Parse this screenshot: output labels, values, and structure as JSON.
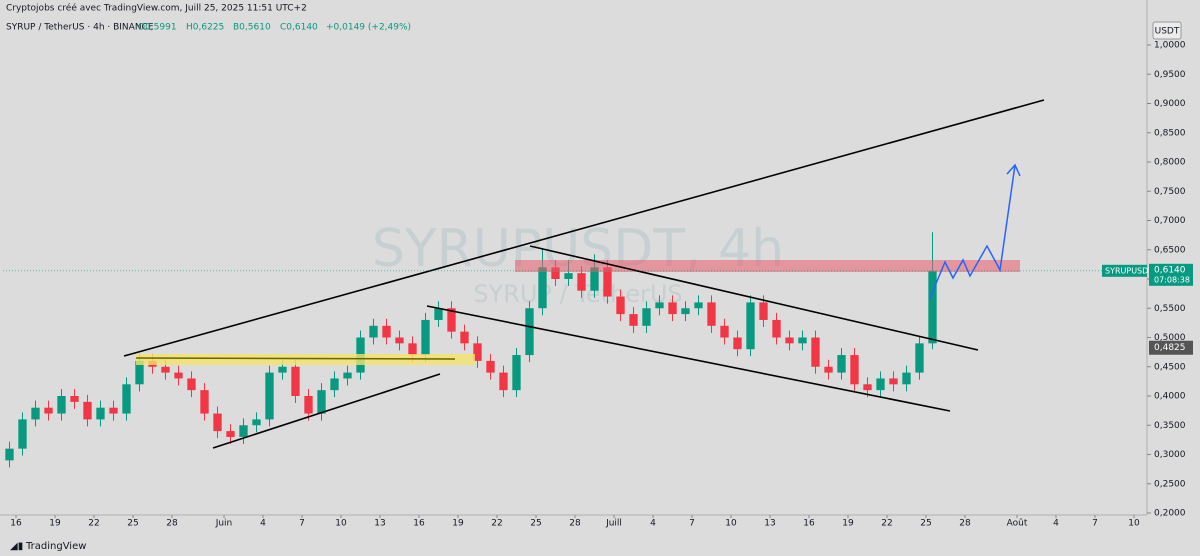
{
  "chart_data": {
    "type": "candlestick",
    "header": "Cryptojobs créé avec TradingView.com, Juill 25, 2025 11:51 UTC+2",
    "symbol_line": "SYRUP / TetherUS · 4h · BINANCE",
    "ohlc_text": [
      "O0,5991",
      "H0,6225",
      "B0,5610",
      "C0,6140"
    ],
    "change_text": "+0,0149 (+2,49%)",
    "watermark": "SYRUPUSDT, 4h",
    "watermark_sub": "SYRUP / TetherUS",
    "currency": "USDT",
    "symbol": "SYRUPUSDT",
    "countdown": "07:08:38",
    "footer": "TradingView",
    "last_price": {
      "value": 0.614,
      "label": "0,6140"
    },
    "marker_price": {
      "value": 0.4825,
      "label": "0,4825"
    },
    "up_color": "#089981",
    "down_color": "#f23645",
    "xlim": [
      "2025-05-15",
      "2025-08-11"
    ],
    "xticks": [
      {
        "value": "2025-05-16",
        "label": "16"
      },
      {
        "value": "2025-05-19",
        "label": "19"
      },
      {
        "value": "2025-05-22",
        "label": "22"
      },
      {
        "value": "2025-05-25",
        "label": "25"
      },
      {
        "value": "2025-05-28",
        "label": "28"
      },
      {
        "value": "2025-06-01",
        "label": "Juin"
      },
      {
        "value": "2025-06-04",
        "label": "4"
      },
      {
        "value": "2025-06-07",
        "label": "7"
      },
      {
        "value": "2025-06-10",
        "label": "10"
      },
      {
        "value": "2025-06-13",
        "label": "13"
      },
      {
        "value": "2025-06-16",
        "label": "16"
      },
      {
        "value": "2025-06-19",
        "label": "19"
      },
      {
        "value": "2025-06-22",
        "label": "22"
      },
      {
        "value": "2025-06-25",
        "label": "25"
      },
      {
        "value": "2025-06-28",
        "label": "28"
      },
      {
        "value": "2025-07-01",
        "label": "Juill"
      },
      {
        "value": "2025-07-04",
        "label": "4"
      },
      {
        "value": "2025-07-07",
        "label": "7"
      },
      {
        "value": "2025-07-10",
        "label": "10"
      },
      {
        "value": "2025-07-13",
        "label": "13"
      },
      {
        "value": "2025-07-16",
        "label": "16"
      },
      {
        "value": "2025-07-19",
        "label": "19"
      },
      {
        "value": "2025-07-22",
        "label": "22"
      },
      {
        "value": "2025-07-25",
        "label": "25"
      },
      {
        "value": "2025-07-28",
        "label": "28"
      },
      {
        "value": "2025-08-01",
        "label": "Août"
      },
      {
        "value": "2025-08-04",
        "label": "4"
      },
      {
        "value": "2025-08-07",
        "label": "7"
      },
      {
        "value": "2025-08-10",
        "label": "10"
      }
    ],
    "ylim": [
      0.2,
      1.0
    ],
    "yticks": [
      {
        "value": 0.2,
        "label": "0,2000"
      },
      {
        "value": 0.25,
        "label": "0,2500"
      },
      {
        "value": 0.3,
        "label": "0,3000"
      },
      {
        "value": 0.35,
        "label": "0,3500"
      },
      {
        "value": 0.4,
        "label": "0,4000"
      },
      {
        "value": 0.45,
        "label": "0,4500"
      },
      {
        "value": 0.5,
        "label": "0,5000"
      },
      {
        "value": 0.55,
        "label": "0,5500"
      },
      {
        "value": 0.6,
        "label": "0,6000"
      },
      {
        "value": 0.65,
        "label": "0,6500"
      },
      {
        "value": 0.7,
        "label": "0,7000"
      },
      {
        "value": 0.75,
        "label": "0,7500"
      },
      {
        "value": 0.8,
        "label": "0,8000"
      },
      {
        "value": 0.85,
        "label": "0,8500"
      },
      {
        "value": 0.9,
        "label": "0,9000"
      },
      {
        "value": 0.95,
        "label": "0,9500"
      },
      {
        "value": 1.0,
        "label": "1,0000"
      }
    ],
    "x": [
      "2025-05-15",
      "2025-05-16",
      "2025-05-17",
      "2025-05-18",
      "2025-05-19",
      "2025-05-20",
      "2025-05-21",
      "2025-05-22",
      "2025-05-23",
      "2025-05-24",
      "2025-05-25",
      "2025-05-26",
      "2025-05-27",
      "2025-05-28",
      "2025-05-29",
      "2025-05-30",
      "2025-05-31",
      "2025-06-01",
      "2025-06-02",
      "2025-06-03",
      "2025-06-04",
      "2025-06-05",
      "2025-06-06",
      "2025-06-07",
      "2025-06-08",
      "2025-06-09",
      "2025-06-10",
      "2025-06-11",
      "2025-06-12",
      "2025-06-13",
      "2025-06-14",
      "2025-06-15",
      "2025-06-16",
      "2025-06-17",
      "2025-06-18",
      "2025-06-19",
      "2025-06-20",
      "2025-06-21",
      "2025-06-22",
      "2025-06-23",
      "2025-06-24",
      "2025-06-25",
      "2025-06-26",
      "2025-06-27",
      "2025-06-28",
      "2025-06-29",
      "2025-06-30",
      "2025-07-01",
      "2025-07-02",
      "2025-07-03",
      "2025-07-04",
      "2025-07-05",
      "2025-07-06",
      "2025-07-07",
      "2025-07-08",
      "2025-07-09",
      "2025-07-10",
      "2025-07-11",
      "2025-07-12",
      "2025-07-13",
      "2025-07-14",
      "2025-07-15",
      "2025-07-16",
      "2025-07-17",
      "2025-07-18",
      "2025-07-19",
      "2025-07-20",
      "2025-07-21",
      "2025-07-22",
      "2025-07-23",
      "2025-07-24",
      "2025-07-25"
    ],
    "ohlc": [
      [
        0.29,
        0.322,
        0.278,
        0.31
      ],
      [
        0.31,
        0.372,
        0.298,
        0.36
      ],
      [
        0.36,
        0.392,
        0.348,
        0.38
      ],
      [
        0.38,
        0.392,
        0.358,
        0.37
      ],
      [
        0.37,
        0.412,
        0.358,
        0.4
      ],
      [
        0.4,
        0.412,
        0.378,
        0.39
      ],
      [
        0.39,
        0.402,
        0.348,
        0.36
      ],
      [
        0.36,
        0.392,
        0.348,
        0.38
      ],
      [
        0.38,
        0.392,
        0.358,
        0.37
      ],
      [
        0.37,
        0.432,
        0.358,
        0.42
      ],
      [
        0.42,
        0.472,
        0.408,
        0.46
      ],
      [
        0.46,
        0.472,
        0.438,
        0.45
      ],
      [
        0.45,
        0.462,
        0.428,
        0.44
      ],
      [
        0.44,
        0.452,
        0.418,
        0.43
      ],
      [
        0.43,
        0.442,
        0.398,
        0.41
      ],
      [
        0.41,
        0.422,
        0.358,
        0.37
      ],
      [
        0.37,
        0.382,
        0.328,
        0.34
      ],
      [
        0.34,
        0.352,
        0.318,
        0.33
      ],
      [
        0.33,
        0.362,
        0.318,
        0.35
      ],
      [
        0.35,
        0.372,
        0.338,
        0.36
      ],
      [
        0.36,
        0.452,
        0.348,
        0.44
      ],
      [
        0.44,
        0.462,
        0.428,
        0.45
      ],
      [
        0.45,
        0.462,
        0.388,
        0.4
      ],
      [
        0.4,
        0.412,
        0.358,
        0.37
      ],
      [
        0.37,
        0.422,
        0.358,
        0.41
      ],
      [
        0.41,
        0.442,
        0.398,
        0.43
      ],
      [
        0.43,
        0.452,
        0.418,
        0.44
      ],
      [
        0.44,
        0.512,
        0.428,
        0.5
      ],
      [
        0.5,
        0.532,
        0.488,
        0.52
      ],
      [
        0.52,
        0.532,
        0.488,
        0.5
      ],
      [
        0.5,
        0.512,
        0.478,
        0.49
      ],
      [
        0.49,
        0.502,
        0.458,
        0.47
      ],
      [
        0.47,
        0.542,
        0.458,
        0.53
      ],
      [
        0.53,
        0.562,
        0.518,
        0.55
      ],
      [
        0.55,
        0.562,
        0.498,
        0.51
      ],
      [
        0.51,
        0.522,
        0.478,
        0.49
      ],
      [
        0.49,
        0.502,
        0.448,
        0.46
      ],
      [
        0.46,
        0.472,
        0.428,
        0.44
      ],
      [
        0.44,
        0.452,
        0.398,
        0.41
      ],
      [
        0.41,
        0.482,
        0.398,
        0.47
      ],
      [
        0.47,
        0.562,
        0.458,
        0.55
      ],
      [
        0.55,
        0.652,
        0.538,
        0.62
      ],
      [
        0.62,
        0.632,
        0.588,
        0.6
      ],
      [
        0.6,
        0.632,
        0.588,
        0.61
      ],
      [
        0.61,
        0.622,
        0.568,
        0.58
      ],
      [
        0.58,
        0.642,
        0.568,
        0.62
      ],
      [
        0.62,
        0.632,
        0.558,
        0.57
      ],
      [
        0.57,
        0.582,
        0.528,
        0.54
      ],
      [
        0.54,
        0.552,
        0.508,
        0.52
      ],
      [
        0.52,
        0.562,
        0.508,
        0.55
      ],
      [
        0.55,
        0.572,
        0.538,
        0.56
      ],
      [
        0.56,
        0.572,
        0.528,
        0.54
      ],
      [
        0.54,
        0.562,
        0.528,
        0.55
      ],
      [
        0.55,
        0.572,
        0.538,
        0.56
      ],
      [
        0.56,
        0.572,
        0.508,
        0.52
      ],
      [
        0.52,
        0.532,
        0.488,
        0.5
      ],
      [
        0.5,
        0.512,
        0.468,
        0.48
      ],
      [
        0.48,
        0.572,
        0.468,
        0.56
      ],
      [
        0.56,
        0.572,
        0.518,
        0.53
      ],
      [
        0.53,
        0.542,
        0.488,
        0.5
      ],
      [
        0.5,
        0.512,
        0.478,
        0.49
      ],
      [
        0.49,
        0.512,
        0.478,
        0.5
      ],
      [
        0.5,
        0.512,
        0.438,
        0.45
      ],
      [
        0.45,
        0.462,
        0.428,
        0.44
      ],
      [
        0.44,
        0.482,
        0.428,
        0.47
      ],
      [
        0.47,
        0.482,
        0.408,
        0.42
      ],
      [
        0.42,
        0.432,
        0.398,
        0.41
      ],
      [
        0.41,
        0.442,
        0.398,
        0.43
      ],
      [
        0.43,
        0.442,
        0.408,
        0.42
      ],
      [
        0.42,
        0.452,
        0.408,
        0.44
      ],
      [
        0.44,
        0.502,
        0.428,
        0.49
      ],
      [
        0.49,
        0.68,
        0.48,
        0.614
      ]
    ]
  }
}
